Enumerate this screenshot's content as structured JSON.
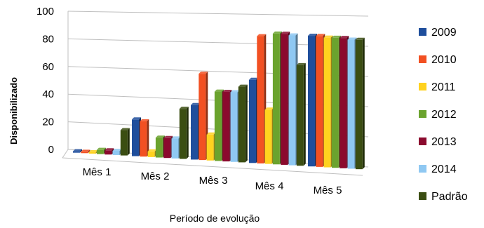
{
  "chart_data": {
    "type": "bar",
    "title": "",
    "xlabel": "Período de evolução",
    "ylabel": "Disponibilizado",
    "ylim": [
      0,
      100
    ],
    "yticks": [
      0,
      20,
      40,
      60,
      80,
      100
    ],
    "grid": true,
    "legend_position": "right",
    "categories": [
      "Mês 1",
      "Mês 2",
      "Mês 3",
      "Mês 4",
      "Mês 5"
    ],
    "series": [
      {
        "name": "2009",
        "color": "#1F4E9C",
        "values": [
          1,
          26,
          38,
          57,
          88
        ]
      },
      {
        "name": "2010",
        "color": "#F25022",
        "values": [
          1,
          25,
          60,
          87,
          88
        ]
      },
      {
        "name": "2011",
        "color": "#FFD21F",
        "values": [
          1,
          4,
          18,
          37,
          87
        ]
      },
      {
        "name": "2012",
        "color": "#6BA32E",
        "values": [
          3,
          14,
          48,
          89,
          87
        ]
      },
      {
        "name": "2013",
        "color": "#8B0A2E",
        "values": [
          3,
          14,
          48,
          89,
          87
        ]
      },
      {
        "name": "2014",
        "color": "#8FC8F2",
        "values": [
          3,
          14,
          48,
          88,
          86
        ]
      },
      {
        "name": "Padrão",
        "color": "#3B4E12",
        "values": [
          18,
          35,
          52,
          68,
          86
        ]
      }
    ]
  }
}
